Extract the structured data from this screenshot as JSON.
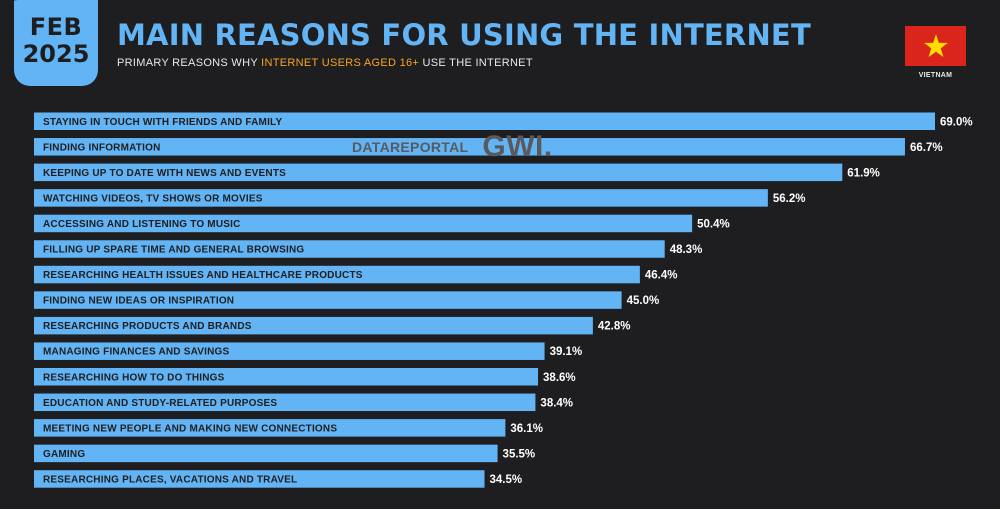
{
  "header": {
    "date_month": "FEB",
    "date_year": "2025",
    "title": "MAIN REASONS FOR USING THE INTERNET",
    "subtitle_pre": "PRIMARY REASONS WHY ",
    "subtitle_highlight": "INTERNET USERS AGED 16+",
    "subtitle_post": " USE THE INTERNET",
    "country": "VIETNAM"
  },
  "watermark": {
    "brand1": "DATAREPORTAL",
    "brand2": "GWI."
  },
  "colors": {
    "background": "#1e1e20",
    "bar": "#62b4f5",
    "highlight": "#f6a623",
    "flag_red": "#da251d",
    "flag_star": "#ffdd00"
  },
  "icons": {
    "flag": "vietnam-flag-icon",
    "watermark": "datareportal-logo-icon"
  },
  "chart_data": {
    "type": "bar",
    "orientation": "horizontal",
    "categories": [
      "STAYING IN TOUCH WITH FRIENDS AND FAMILY",
      "FINDING INFORMATION",
      "KEEPING UP TO DATE WITH NEWS AND EVENTS",
      "WATCHING VIDEOS, TV SHOWS OR MOVIES",
      "ACCESSING AND LISTENING TO MUSIC",
      "FILLING UP SPARE TIME AND GENERAL BROWSING",
      "RESEARCHING HEALTH ISSUES AND HEALTHCARE PRODUCTS",
      "FINDING NEW IDEAS OR INSPIRATION",
      "RESEARCHING PRODUCTS AND BRANDS",
      "MANAGING FINANCES AND SAVINGS",
      "RESEARCHING HOW TO DO THINGS",
      "EDUCATION AND STUDY-RELATED PURPOSES",
      "MEETING NEW PEOPLE AND MAKING NEW CONNECTIONS",
      "GAMING",
      "RESEARCHING PLACES, VACATIONS AND TRAVEL"
    ],
    "values": [
      69.0,
      66.7,
      61.9,
      56.2,
      50.4,
      48.3,
      46.4,
      45.0,
      42.8,
      39.1,
      38.6,
      38.4,
      36.1,
      35.5,
      34.5
    ],
    "value_labels": [
      "69.0%",
      "66.7%",
      "61.9%",
      "56.2%",
      "50.4%",
      "48.3%",
      "46.4%",
      "45.0%",
      "42.8%",
      "39.1%",
      "38.6%",
      "38.4%",
      "36.1%",
      "35.5%",
      "34.5%"
    ],
    "unit": "%",
    "xlim": [
      0,
      69.0
    ],
    "grid": false,
    "legend": "none"
  }
}
